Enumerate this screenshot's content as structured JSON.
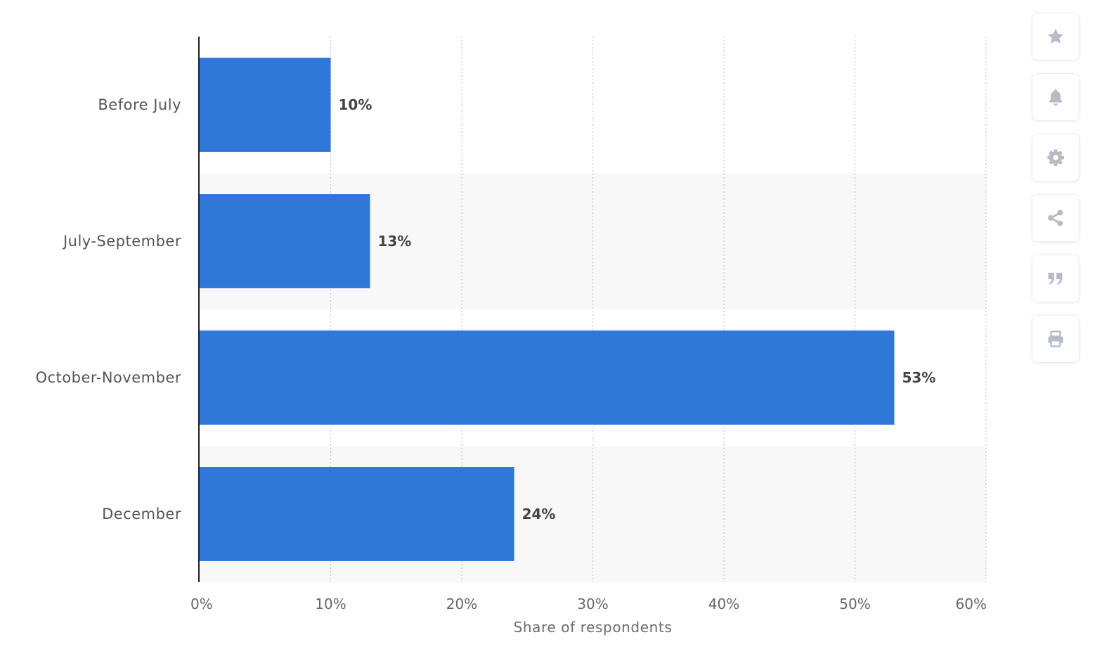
{
  "chart_data": {
    "type": "bar",
    "orientation": "horizontal",
    "categories": [
      "Before July",
      "July-September",
      "October-November",
      "December"
    ],
    "values": [
      10,
      13,
      53,
      24
    ],
    "value_labels": [
      "10%",
      "13%",
      "53%",
      "24%"
    ],
    "xlabel": "Share of respondents",
    "xlim": [
      0,
      60
    ],
    "xticks": [
      0,
      10,
      20,
      30,
      40,
      50,
      60
    ],
    "xtick_labels": [
      "0%",
      "10%",
      "20%",
      "30%",
      "40%",
      "50%",
      "60%"
    ],
    "grid": "vertical dotted",
    "bar_color": "#2f78d8",
    "alternating_row_shading": true
  },
  "sidebar": {
    "buttons": [
      {
        "name": "favorite",
        "icon": "star-icon"
      },
      {
        "name": "notification",
        "icon": "bell-icon"
      },
      {
        "name": "settings",
        "icon": "gear-icon"
      },
      {
        "name": "share",
        "icon": "share-icon"
      },
      {
        "name": "cite",
        "icon": "quote-icon"
      },
      {
        "name": "print",
        "icon": "print-icon"
      }
    ],
    "icon_color": "#b6bcc6"
  }
}
